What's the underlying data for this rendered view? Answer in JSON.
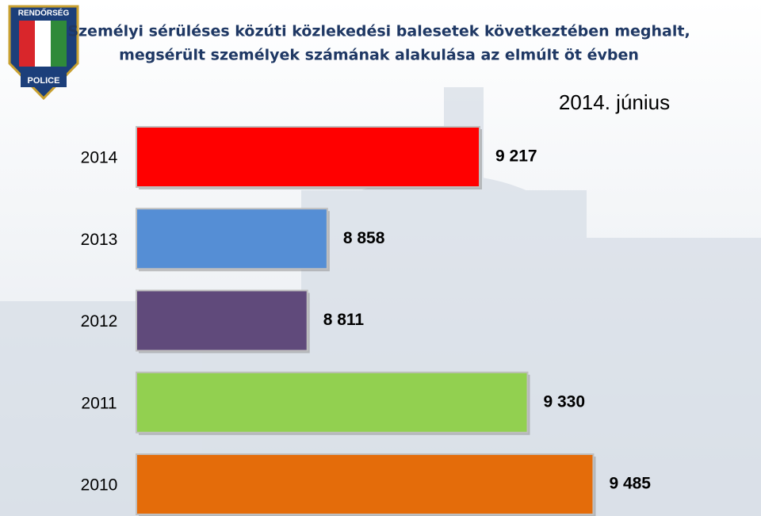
{
  "logo": {
    "top": "RENDŐRSÉG",
    "bottom": "POLICE"
  },
  "chart_data": {
    "type": "hbar",
    "title": [
      "Személyi sérüléses közúti közlekedési balesetek következtében meghalt,",
      "megsérült személyek számának alakulása az elmúlt öt évben"
    ],
    "subtitle": "2014.  június",
    "categories": [
      "2014",
      "2013",
      "2012",
      "2011",
      "2010"
    ],
    "values": [
      9217,
      8858,
      8811,
      9330,
      9485
    ],
    "value_labels": [
      "9 217",
      "8 858",
      "8 811",
      "9 330",
      "9 485"
    ],
    "colors": [
      "#ff0000",
      "#558ed5",
      "#604a7b",
      "#92d050",
      "#e46c0a"
    ],
    "xlim": [
      8408,
      9600
    ]
  }
}
